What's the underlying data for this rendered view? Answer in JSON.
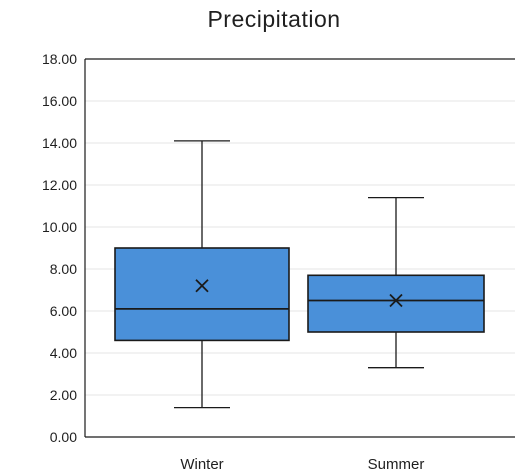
{
  "chart_data": {
    "type": "boxplot",
    "title": "Precipitation",
    "xlabel": "",
    "ylabel": "",
    "ylim": [
      0,
      18
    ],
    "y_ticks": [
      "0.00",
      "2.00",
      "4.00",
      "6.00",
      "8.00",
      "10.00",
      "12.00",
      "14.00",
      "16.00",
      "18.00"
    ],
    "grid": true,
    "categories": [
      "Winter",
      "Summer"
    ],
    "boxes": [
      {
        "category": "Winter",
        "min": 1.4,
        "q1": 4.6,
        "median": 6.1,
        "mean": 7.2,
        "q3": 9.0,
        "max": 14.1
      },
      {
        "category": "Summer",
        "min": 3.3,
        "q1": 5.0,
        "median": 6.5,
        "mean": 6.5,
        "q3": 7.7,
        "max": 11.4
      }
    ],
    "colors": {
      "box_fill": "#4a90d9",
      "box_stroke": "#1a1a1a",
      "grid": "#e6e6e6",
      "axis": "#1a1a1a"
    }
  }
}
